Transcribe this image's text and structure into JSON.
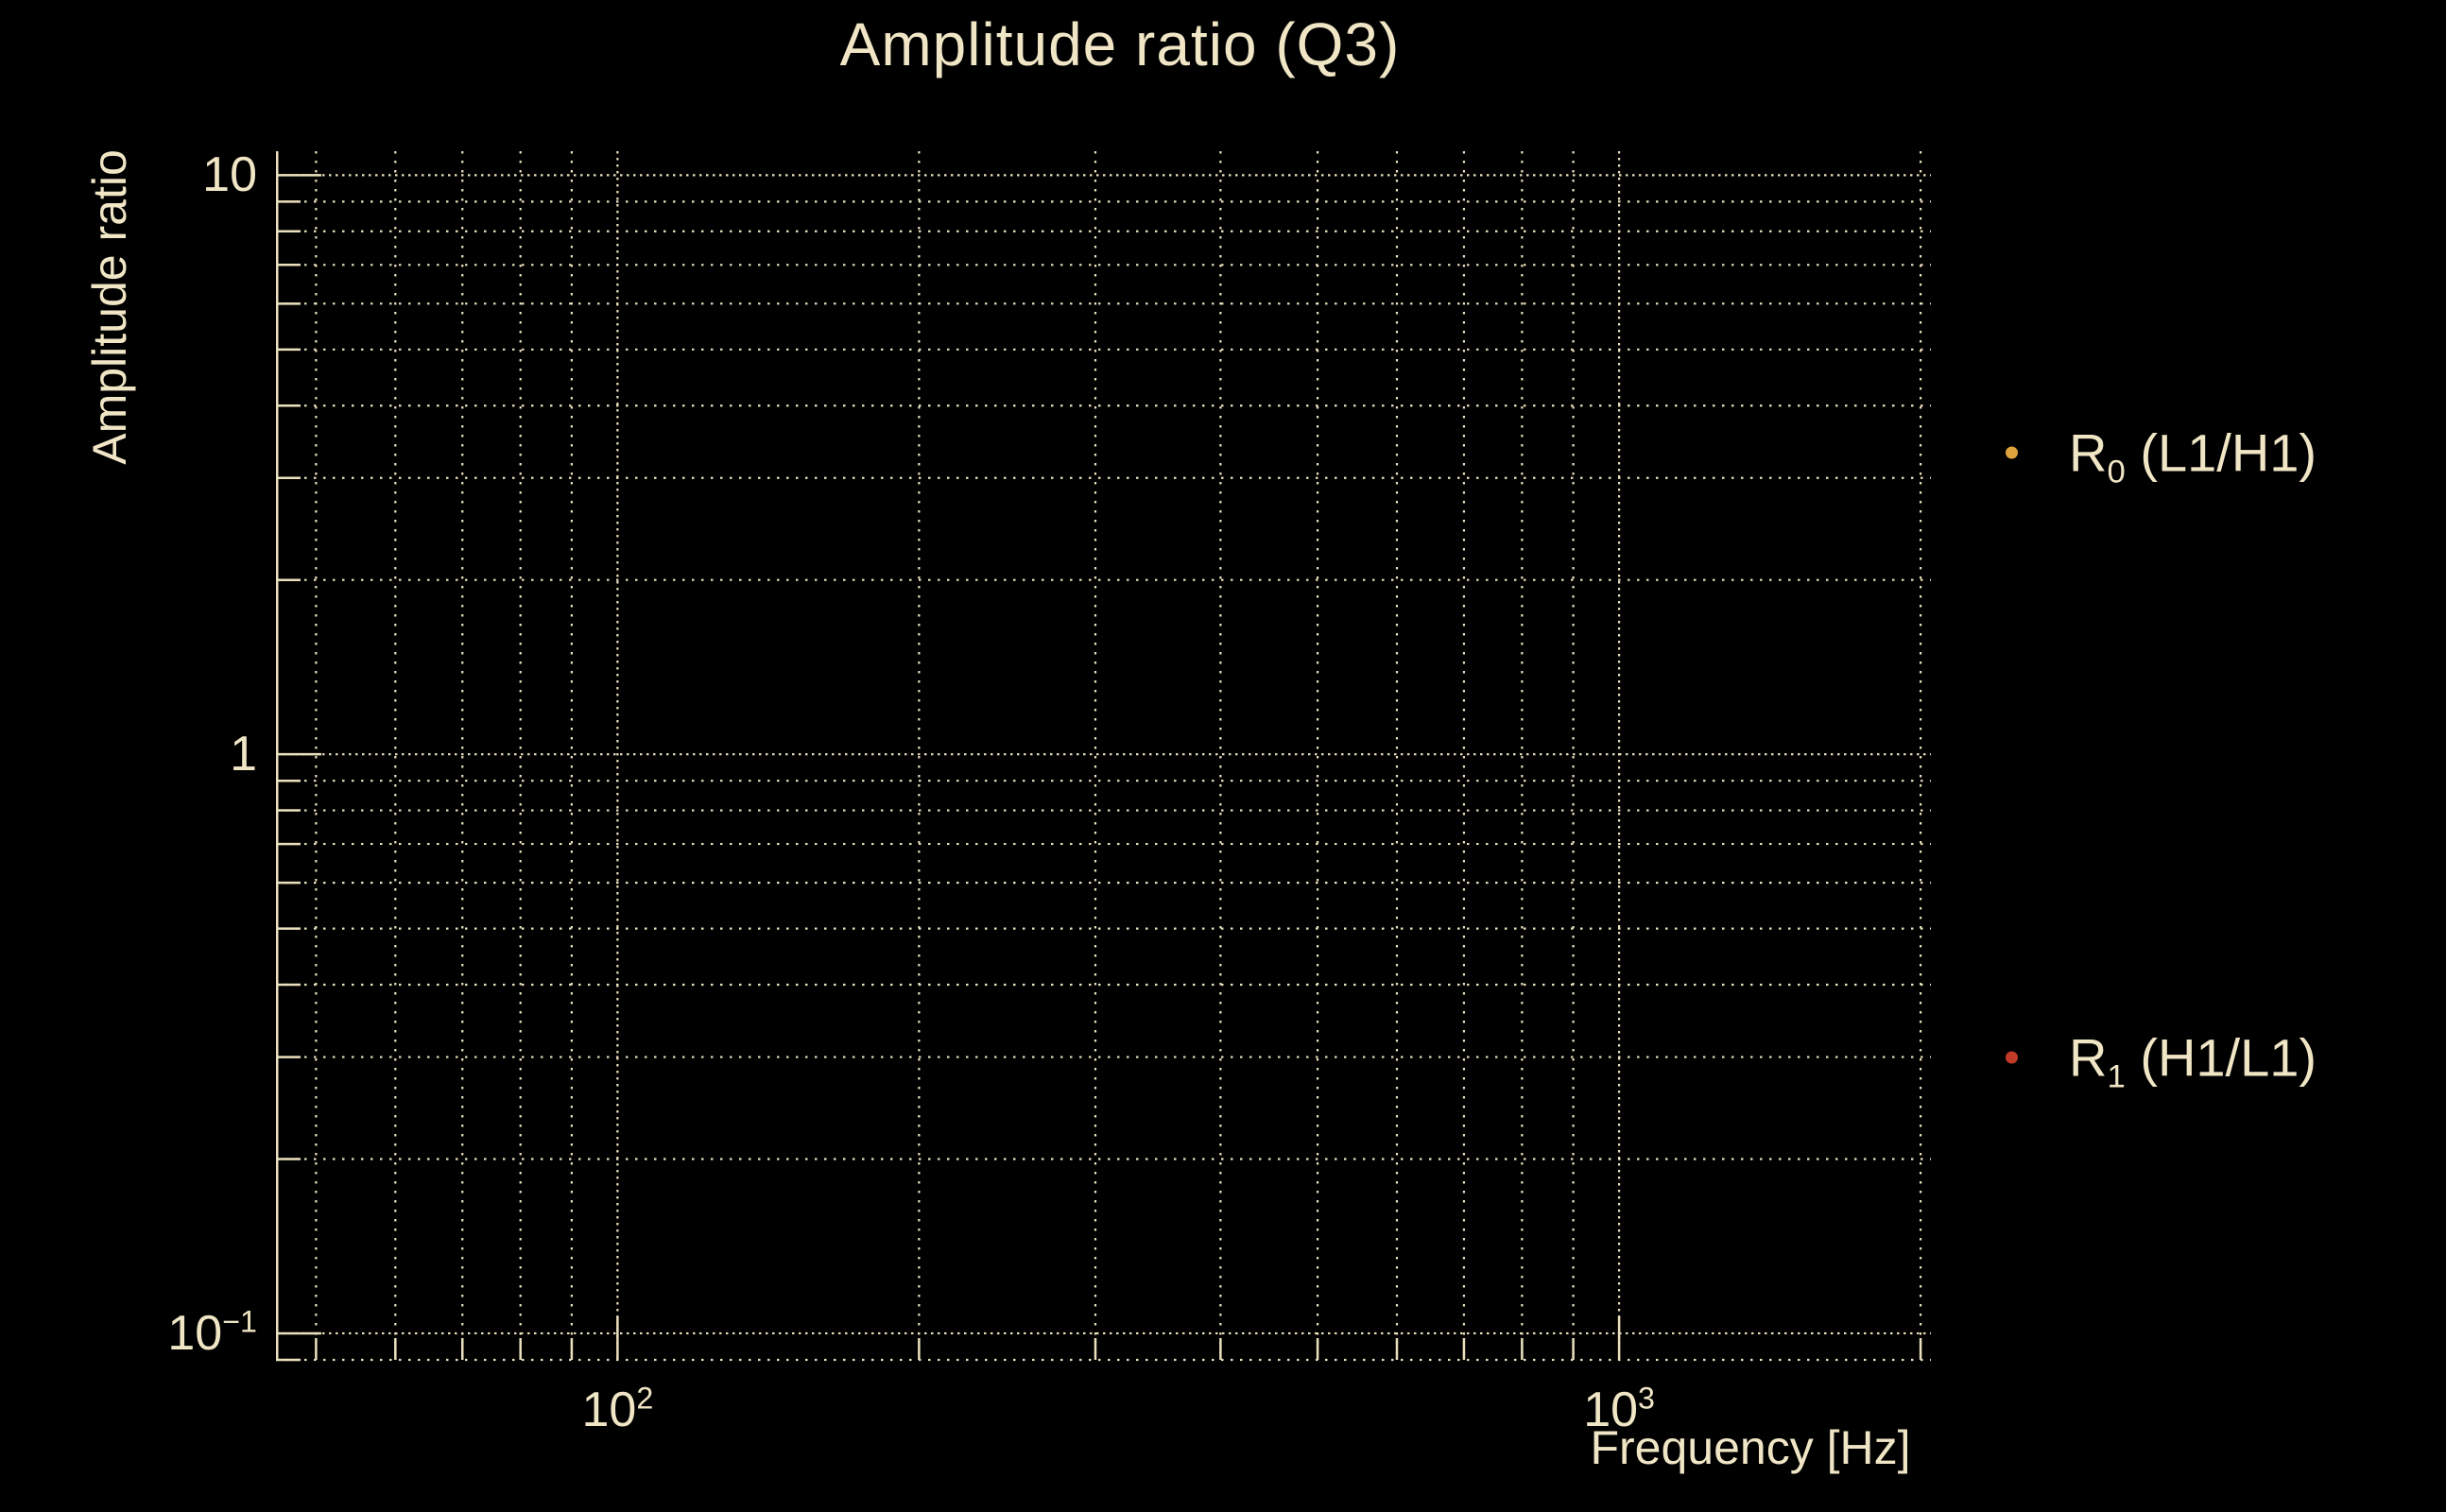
{
  "page": {
    "background_color": "#000000",
    "foreground_color": "#F0E6C6"
  },
  "chart_data": {
    "type": "scatter",
    "title": "Amplitude ratio (Q3)",
    "xlabel": "Frequency [Hz]",
    "ylabel": "Amplitude ratio",
    "xscale": "log",
    "yscale": "log",
    "xlim": [
      45.6,
      2048
    ],
    "ylim": [
      0.09,
      11.0
    ],
    "grid": {
      "style": "dotted",
      "color": "#EBE1BE",
      "x_major": [
        100,
        1000
      ],
      "x_minor": [
        50,
        60,
        70,
        80,
        90,
        200,
        300,
        400,
        500,
        600,
        700,
        800,
        900,
        2000
      ],
      "y_major": [
        10,
        1,
        0.1
      ],
      "y_minor": [
        9,
        8,
        7,
        6,
        5,
        4,
        3,
        2,
        0.9,
        0.8,
        0.7,
        0.6,
        0.5,
        0.4,
        0.3,
        0.2,
        0.09
      ]
    },
    "xticks": [
      {
        "value": 100,
        "base": "10",
        "exp": "2"
      },
      {
        "value": 1000,
        "base": "10",
        "exp": "3"
      }
    ],
    "yticks": [
      {
        "value": 10,
        "base": "10",
        "exp": ""
      },
      {
        "value": 1,
        "base": "1",
        "exp": ""
      },
      {
        "value": 0.1,
        "base": "10",
        "exp": "−1"
      }
    ],
    "series": [
      {
        "name_main": "R",
        "name_sub": "0",
        "name_rest": " (L1/H1)",
        "marker": "dot",
        "color": "#DDA33D",
        "points": []
      },
      {
        "name_main": "R",
        "name_sub": "1",
        "name_rest": " (H1/L1)",
        "marker": "dot",
        "color": "#C23A28",
        "points": []
      }
    ],
    "legend_position": "right-outside"
  }
}
